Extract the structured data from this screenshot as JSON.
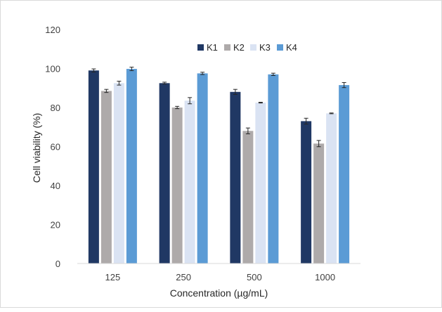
{
  "chart_data": {
    "type": "bar",
    "title": "",
    "xlabel": "Concentration (µg/mL)",
    "ylabel": "Cell viability (%)",
    "ylim": [
      0,
      120
    ],
    "yticks": [
      "0",
      "20",
      "40",
      "60",
      "80",
      "100",
      "120"
    ],
    "categories": [
      "125",
      "250",
      "500",
      "1000"
    ],
    "grid": false,
    "legend_position": "top-right",
    "series": [
      {
        "name": "K1",
        "color": "#203864",
        "values": [
          99,
          92.5,
          88,
          73
        ],
        "errors": [
          0.8,
          0.5,
          1.3,
          1.5
        ]
      },
      {
        "name": "K2",
        "color": "#aeaaaa",
        "values": [
          88.5,
          80,
          68,
          61.5
        ],
        "errors": [
          0.8,
          0.6,
          1.5,
          1.6
        ]
      },
      {
        "name": "K3",
        "color": "#dae3f3",
        "values": [
          92.5,
          83.5,
          82.5,
          77
        ],
        "errors": [
          1.0,
          1.6,
          0.2,
          0.2
        ]
      },
      {
        "name": "K4",
        "color": "#5b9bd5",
        "values": [
          99.8,
          97.5,
          97,
          91.5
        ],
        "errors": [
          0.9,
          0.6,
          0.6,
          1.3
        ]
      }
    ]
  }
}
